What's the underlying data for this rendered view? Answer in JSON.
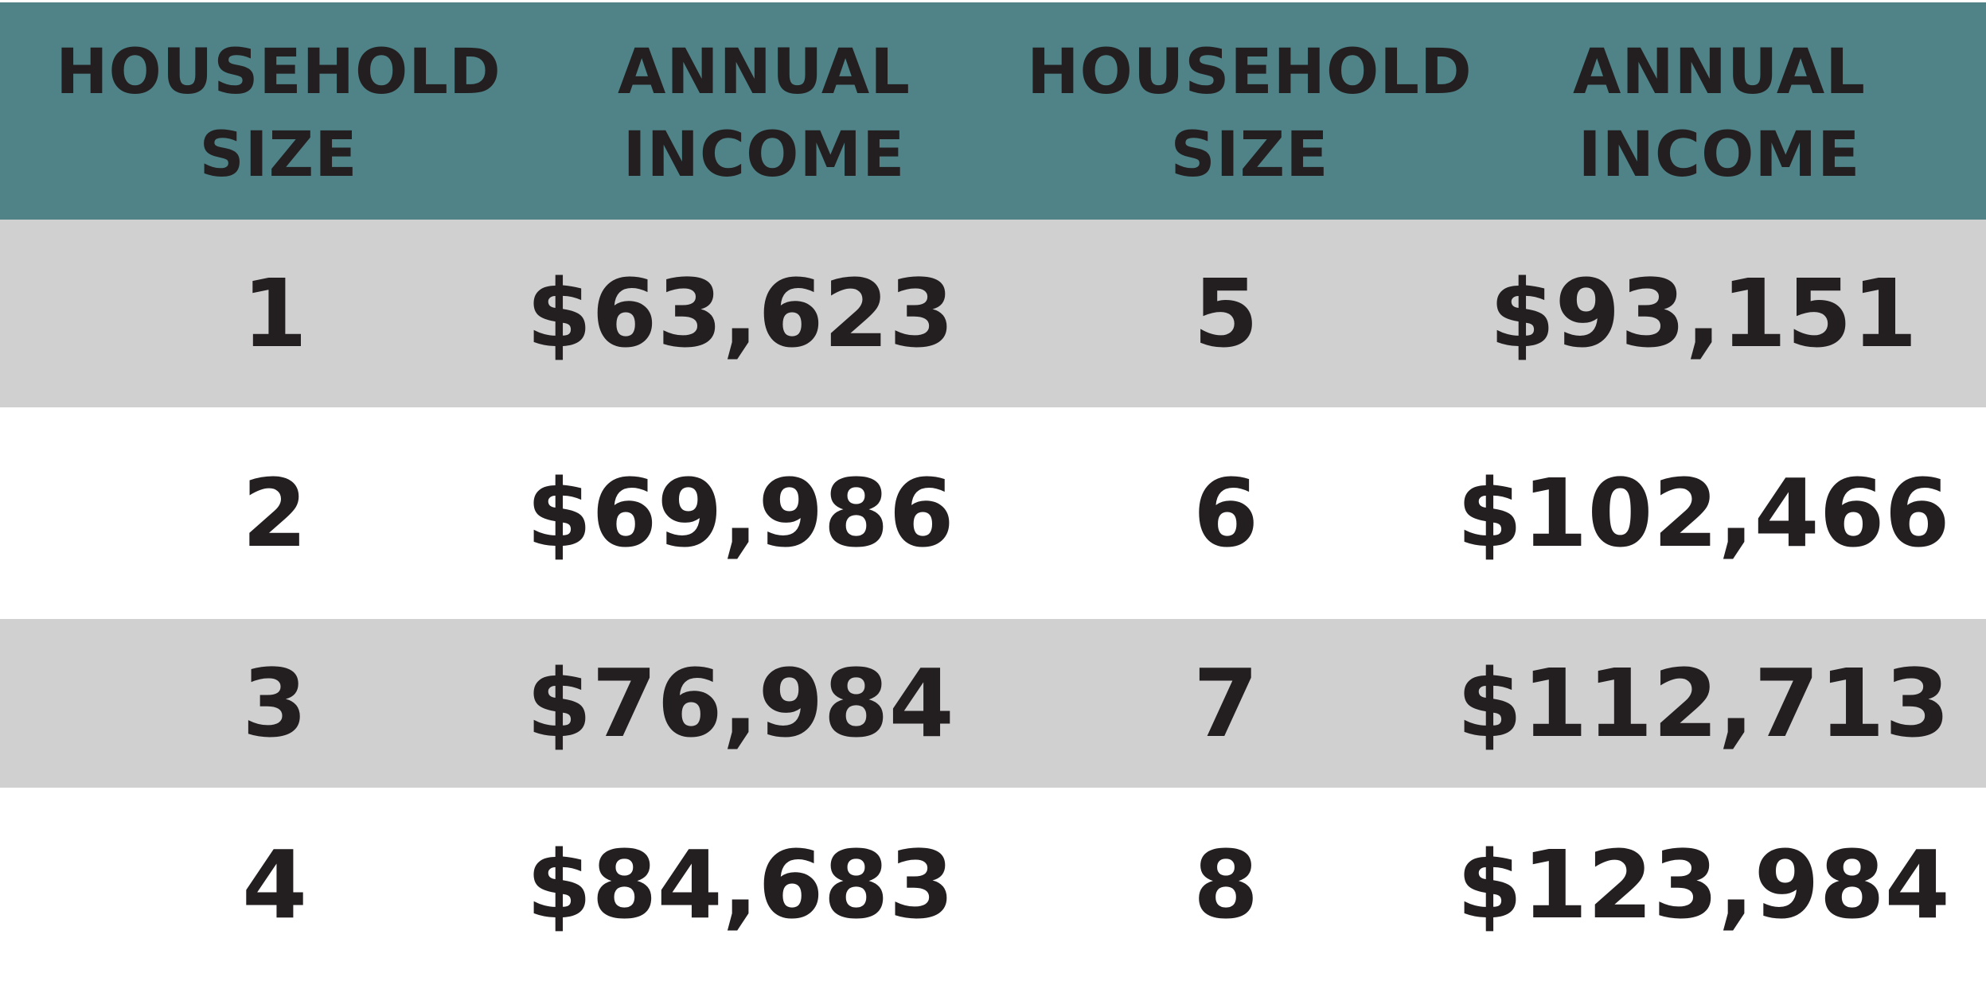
{
  "colors": {
    "header_bg": "#4f8387",
    "shaded_row": "#d0d0d0",
    "plain_row": "#ffffff",
    "text": "#231f20"
  },
  "headers": [
    "HOUSEHOLD\nSIZE",
    "ANNUAL\nINCOME",
    "HOUSEHOLD\nSIZE",
    "ANNUAL\nINCOME"
  ],
  "rows": [
    {
      "size_left": "1",
      "income_left": "$63,623",
      "size_right": "5",
      "income_right": "$93,151"
    },
    {
      "size_left": "2",
      "income_left": "$69,986",
      "size_right": "6",
      "income_right": "$102,466"
    },
    {
      "size_left": "3",
      "income_left": "$76,984",
      "size_right": "7",
      "income_right": "$112,713"
    },
    {
      "size_left": "4",
      "income_left": "$84,683",
      "size_right": "8",
      "income_right": "$123,984"
    }
  ]
}
